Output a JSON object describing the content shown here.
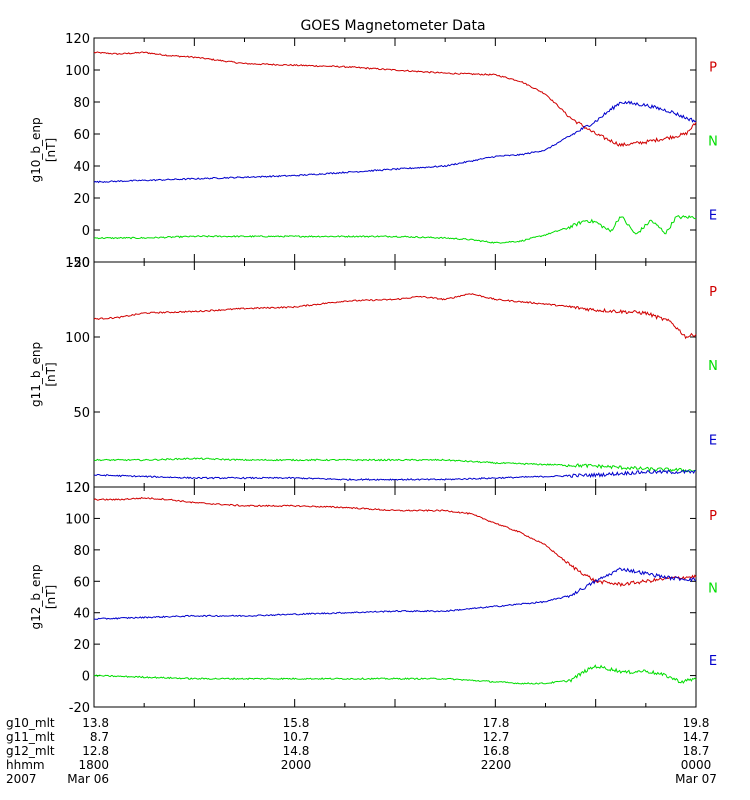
{
  "chart_data": {
    "type": "line",
    "title": "GOES Magnetometer Data",
    "x_time_range": [
      "2007-03-06 18:00",
      "2007-03-07 00:00"
    ],
    "panels": [
      {
        "ylabel": "g10_b_enp",
        "unit": "[nT]",
        "ylim": [
          -20,
          120
        ],
        "yticks": [
          -20,
          0,
          20,
          40,
          60,
          80,
          100,
          120
        ],
        "series": [
          {
            "name": "P",
            "color": "#d00000",
            "x": [
              0,
              0.25,
              0.5,
              0.75,
              1,
              1.5,
              2,
              2.5,
              3,
              3.5,
              4,
              4.25,
              4.5,
              4.75,
              5,
              5.25,
              5.5,
              5.75,
              5.9,
              6
            ],
            "y": [
              111,
              110,
              111,
              109,
              108,
              104,
              103,
              102,
              100,
              98,
              97,
              93,
              85,
              70,
              60,
              53,
              55,
              58,
              60,
              67
            ]
          },
          {
            "name": "N",
            "color": "#00dd00",
            "x": [
              0,
              0.5,
              1,
              1.5,
              2,
              2.5,
              3,
              3.5,
              3.75,
              4,
              4.25,
              4.5,
              4.75,
              4.9,
              5,
              5.15,
              5.25,
              5.4,
              5.55,
              5.7,
              5.8,
              6
            ],
            "y": [
              -5,
              -5,
              -4,
              -4,
              -4,
              -4,
              -4,
              -5,
              -6,
              -8,
              -7,
              -3,
              2,
              6,
              5,
              -1,
              9,
              -3,
              6,
              -2,
              8,
              8
            ]
          },
          {
            "name": "E",
            "color": "#0000cc",
            "x": [
              0,
              0.5,
              1,
              1.5,
              2,
              2.5,
              3,
              3.5,
              3.75,
              4,
              4.25,
              4.5,
              4.75,
              5,
              5.25,
              5.5,
              5.75,
              5.9,
              6
            ],
            "y": [
              30,
              31,
              32,
              33,
              34,
              36,
              38,
              40,
              43,
              46,
              47,
              50,
              59,
              68,
              80,
              78,
              74,
              70,
              68
            ]
          }
        ]
      },
      {
        "ylabel": "g11_b_enp",
        "unit": "[nT]",
        "ylim": [
          0,
          150
        ],
        "yticks": [
          0,
          50,
          100,
          150
        ],
        "series": [
          {
            "name": "P",
            "color": "#d00000",
            "x": [
              0,
              0.25,
              0.5,
              1,
              1.5,
              2,
              2.5,
              3,
              3.25,
              3.5,
              3.75,
              4,
              4.5,
              5,
              5.5,
              5.75,
              5.9,
              6
            ],
            "y": [
              112,
              113,
              116,
              117,
              119,
              120,
              124,
              125,
              127,
              125,
              129,
              125,
              122,
              118,
              116,
              110,
              100,
              102
            ]
          },
          {
            "name": "N",
            "color": "#00dd00",
            "x": [
              0,
              0.5,
              1,
              1.5,
              2,
              2.5,
              3,
              3.5,
              4,
              4.5,
              5,
              5.5,
              6
            ],
            "y": [
              18,
              18,
              19,
              18,
              18,
              18,
              18,
              18,
              16,
              15,
              14,
              12,
              11
            ]
          },
          {
            "name": "E",
            "color": "#0000cc",
            "x": [
              0,
              0.5,
              1,
              1.5,
              2,
              2.5,
              3,
              3.5,
              4,
              4.5,
              5,
              5.5,
              6
            ],
            "y": [
              8,
              7,
              6,
              6,
              6,
              5,
              5,
              5,
              6,
              7,
              8,
              10,
              10
            ]
          }
        ]
      },
      {
        "ylabel": "g12_b_enp",
        "unit": "[nT]",
        "ylim": [
          -20,
          120
        ],
        "yticks": [
          -20,
          0,
          20,
          40,
          60,
          80,
          100,
          120
        ],
        "series": [
          {
            "name": "P",
            "color": "#d00000",
            "x": [
              0,
              0.25,
              0.5,
              0.75,
              1,
              1.5,
              2,
              2.5,
              3,
              3.5,
              3.75,
              4,
              4.25,
              4.5,
              4.75,
              5,
              5.25,
              5.5,
              5.75,
              6
            ],
            "y": [
              112,
              112,
              113,
              112,
              110,
              108,
              108,
              107,
              105,
              105,
              103,
              97,
              91,
              83,
              70,
              60,
              58,
              60,
              62,
              63
            ]
          },
          {
            "name": "N",
            "color": "#00dd00",
            "x": [
              0,
              0.5,
              1,
              1.5,
              2,
              2.5,
              3,
              3.5,
              3.75,
              4,
              4.25,
              4.5,
              4.75,
              4.9,
              5,
              5.15,
              5.3,
              5.5,
              5.7,
              5.85,
              6
            ],
            "y": [
              0,
              -1,
              -2,
              -2,
              -2,
              -2,
              -2,
              -2,
              -3,
              -4,
              -5,
              -5,
              -3,
              3,
              6,
              4,
              2,
              3,
              0,
              -4,
              -2
            ]
          },
          {
            "name": "E",
            "color": "#0000cc",
            "x": [
              0,
              0.5,
              1,
              1.5,
              2,
              2.5,
              3,
              3.5,
              4,
              4.5,
              4.75,
              5,
              5.25,
              5.5,
              5.75,
              6
            ],
            "y": [
              36,
              37,
              38,
              38,
              39,
              40,
              41,
              41,
              44,
              47,
              51,
              60,
              68,
              65,
              62,
              61
            ]
          }
        ]
      }
    ]
  },
  "footer": {
    "rows": [
      {
        "label": "g10_mlt",
        "values": [
          "13.8",
          "15.8",
          "17.8",
          "19.8"
        ]
      },
      {
        "label": "g11_mlt",
        "values": [
          "8.7",
          "10.7",
          "12.7",
          "14.7"
        ]
      },
      {
        "label": "g12_mlt",
        "values": [
          "12.8",
          "14.8",
          "16.8",
          "18.7"
        ]
      },
      {
        "label": "hhmm",
        "values": [
          "1800",
          "2000",
          "2200",
          "0000"
        ]
      },
      {
        "label": "2007",
        "values": [
          "Mar 06",
          "",
          "",
          "Mar 07"
        ]
      }
    ]
  }
}
